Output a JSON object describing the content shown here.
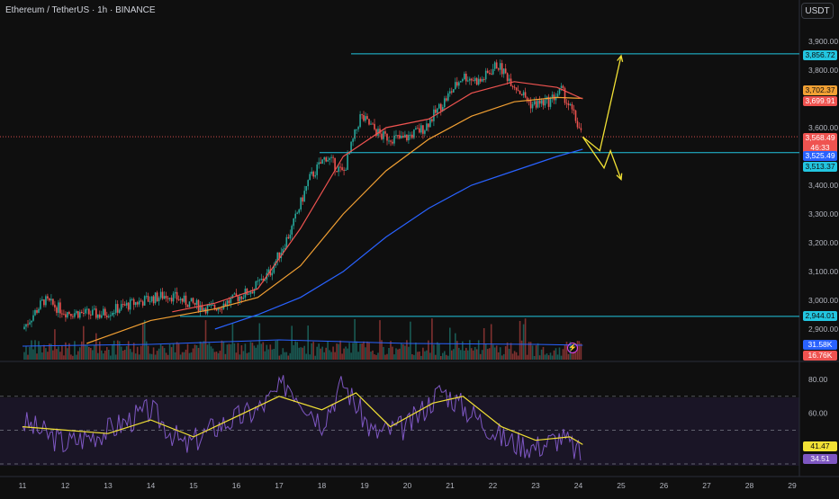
{
  "header": {
    "title": "Ethereum / TetherUS · 1h · BINANCE",
    "currency_button": "USDT"
  },
  "price_axis": {
    "ticks": [
      "3,900.00",
      "3,800.00",
      "3,600.00",
      "3,400.00",
      "3,300.00",
      "3,200.00",
      "3,100.00",
      "3,000.00",
      "2,900.00"
    ]
  },
  "price_tags": {
    "resistance": "3,856.72",
    "ma_orange": "3,702.37",
    "ma_red": "3,699.91",
    "last_price": "3,568.49",
    "countdown": "46:33",
    "ma_blue": "3,525.49",
    "support_mid": "3,513.37",
    "support_low": "2,944.01",
    "volume_a": "31.58K",
    "volume_b": "16.76K"
  },
  "rsi_axis": {
    "ticks": [
      "80.00",
      "60.00"
    ],
    "rsi_ma_tag": "41.47",
    "rsi_tag": "34.51"
  },
  "time_axis": {
    "labels": [
      "11",
      "12",
      "13",
      "14",
      "15",
      "16",
      "17",
      "18",
      "19",
      "20",
      "21",
      "22",
      "23",
      "24",
      "25",
      "26",
      "27",
      "28",
      "29"
    ]
  },
  "colors": {
    "up": "#26a69a",
    "down": "#ef5350",
    "ma_red": "#ef5350",
    "ma_orange": "#f2a033",
    "ma_blue": "#2962ff",
    "level": "#22c6e0",
    "arrow": "#f2e135",
    "rsi": "#7e57c2",
    "rsi_ma": "#f2e135"
  },
  "chart_data": {
    "type": "candlestick",
    "symbol": "Ethereum / TetherUS",
    "interval": "1h",
    "exchange": "BINANCE",
    "price_range": [
      2850,
      3950
    ],
    "horizontal_levels": [
      3856.72,
      3513.37,
      2944.01
    ],
    "last_price": 3568.49,
    "close_path": [
      {
        "x": 0,
        "y": 2900
      },
      {
        "x": 0.5,
        "y": 3000
      },
      {
        "x": 1.0,
        "y": 2960
      },
      {
        "x": 1.8,
        "y": 2950
      },
      {
        "x": 2.6,
        "y": 2990
      },
      {
        "x": 3.4,
        "y": 3020
      },
      {
        "x": 3.9,
        "y": 2990
      },
      {
        "x": 4.4,
        "y": 2970
      },
      {
        "x": 4.9,
        "y": 3000
      },
      {
        "x": 5.4,
        "y": 3040
      },
      {
        "x": 5.8,
        "y": 3100
      },
      {
        "x": 6.3,
        "y": 3250
      },
      {
        "x": 6.7,
        "y": 3420
      },
      {
        "x": 7.1,
        "y": 3500
      },
      {
        "x": 7.5,
        "y": 3440
      },
      {
        "x": 7.9,
        "y": 3640
      },
      {
        "x": 8.4,
        "y": 3570
      },
      {
        "x": 8.9,
        "y": 3560
      },
      {
        "x": 9.4,
        "y": 3600
      },
      {
        "x": 9.9,
        "y": 3700
      },
      {
        "x": 10.3,
        "y": 3780
      },
      {
        "x": 10.7,
        "y": 3760
      },
      {
        "x": 11.1,
        "y": 3820
      },
      {
        "x": 11.5,
        "y": 3750
      },
      {
        "x": 11.9,
        "y": 3680
      },
      {
        "x": 12.3,
        "y": 3690
      },
      {
        "x": 12.6,
        "y": 3730
      },
      {
        "x": 12.9,
        "y": 3640
      },
      {
        "x": 13.1,
        "y": 3568
      }
    ],
    "ma_red_path": [
      {
        "x": 3.5,
        "y": 2960
      },
      {
        "x": 4.5,
        "y": 2990
      },
      {
        "x": 5.5,
        "y": 3040
      },
      {
        "x": 6.5,
        "y": 3250
      },
      {
        "x": 7.5,
        "y": 3500
      },
      {
        "x": 8.5,
        "y": 3600
      },
      {
        "x": 9.5,
        "y": 3630
      },
      {
        "x": 10.5,
        "y": 3720
      },
      {
        "x": 11.5,
        "y": 3760
      },
      {
        "x": 12.5,
        "y": 3740
      },
      {
        "x": 13.1,
        "y": 3700
      }
    ],
    "ma_orange_path": [
      {
        "x": 1.5,
        "y": 2850
      },
      {
        "x": 3.0,
        "y": 2930
      },
      {
        "x": 4.5,
        "y": 2970
      },
      {
        "x": 5.5,
        "y": 3010
      },
      {
        "x": 6.5,
        "y": 3120
      },
      {
        "x": 7.5,
        "y": 3300
      },
      {
        "x": 8.5,
        "y": 3450
      },
      {
        "x": 9.5,
        "y": 3560
      },
      {
        "x": 10.5,
        "y": 3640
      },
      {
        "x": 11.5,
        "y": 3690
      },
      {
        "x": 12.5,
        "y": 3705
      },
      {
        "x": 13.1,
        "y": 3702
      }
    ],
    "ma_blue_path": [
      {
        "x": 4.5,
        "y": 2900
      },
      {
        "x": 5.5,
        "y": 2950
      },
      {
        "x": 6.5,
        "y": 3010
      },
      {
        "x": 7.5,
        "y": 3100
      },
      {
        "x": 8.5,
        "y": 3220
      },
      {
        "x": 9.5,
        "y": 3320
      },
      {
        "x": 10.5,
        "y": 3400
      },
      {
        "x": 11.5,
        "y": 3450
      },
      {
        "x": 12.5,
        "y": 3500
      },
      {
        "x": 13.1,
        "y": 3525
      }
    ],
    "projection_up": [
      {
        "x": 13.1,
        "y": 3568
      },
      {
        "x": 13.5,
        "y": 3520
      },
      {
        "x": 14.0,
        "y": 3850
      }
    ],
    "projection_down": [
      {
        "x": 13.1,
        "y": 3568
      },
      {
        "x": 13.6,
        "y": 3460
      },
      {
        "x": 13.75,
        "y": 3520
      },
      {
        "x": 14.0,
        "y": 3420
      }
    ],
    "rsi_range": [
      20,
      100
    ],
    "rsi_levels": [
      70,
      50,
      30
    ],
    "rsi_path": [
      {
        "x": 0,
        "y": 55
      },
      {
        "x": 1,
        "y": 42
      },
      {
        "x": 2,
        "y": 50
      },
      {
        "x": 3,
        "y": 62
      },
      {
        "x": 3.8,
        "y": 40
      },
      {
        "x": 4.5,
        "y": 52
      },
      {
        "x": 5.5,
        "y": 62
      },
      {
        "x": 6.2,
        "y": 78
      },
      {
        "x": 7.0,
        "y": 55
      },
      {
        "x": 7.5,
        "y": 78
      },
      {
        "x": 8.2,
        "y": 48
      },
      {
        "x": 9.0,
        "y": 52
      },
      {
        "x": 9.8,
        "y": 74
      },
      {
        "x": 10.5,
        "y": 60
      },
      {
        "x": 11.3,
        "y": 44
      },
      {
        "x": 12.0,
        "y": 40
      },
      {
        "x": 12.6,
        "y": 46
      },
      {
        "x": 13.1,
        "y": 34.51
      }
    ],
    "rsi_ma_path": [
      {
        "x": 0,
        "y": 52
      },
      {
        "x": 1,
        "y": 50
      },
      {
        "x": 2,
        "y": 48
      },
      {
        "x": 3,
        "y": 56
      },
      {
        "x": 4,
        "y": 46
      },
      {
        "x": 5,
        "y": 58
      },
      {
        "x": 6,
        "y": 70
      },
      {
        "x": 7,
        "y": 62
      },
      {
        "x": 7.8,
        "y": 72
      },
      {
        "x": 8.6,
        "y": 52
      },
      {
        "x": 9.6,
        "y": 66
      },
      {
        "x": 10.3,
        "y": 70
      },
      {
        "x": 11.2,
        "y": 52
      },
      {
        "x": 12.0,
        "y": 44
      },
      {
        "x": 12.8,
        "y": 46
      },
      {
        "x": 13.1,
        "y": 41.47
      }
    ]
  }
}
